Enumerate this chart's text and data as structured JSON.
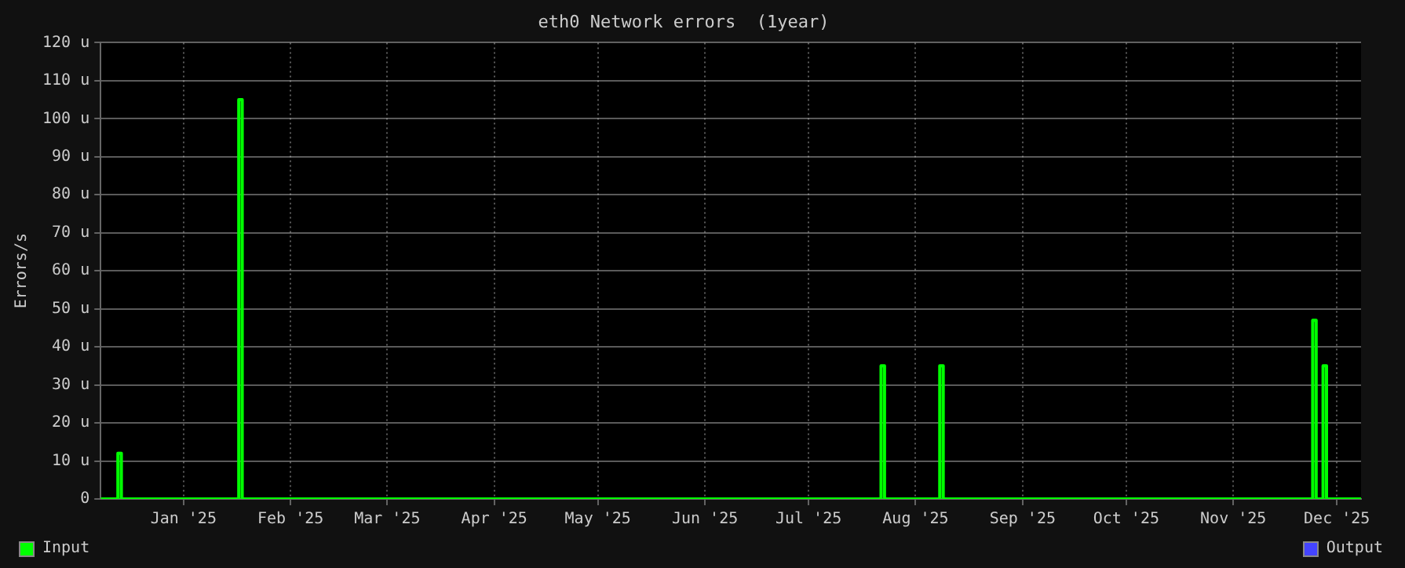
{
  "chart_data": {
    "type": "step",
    "title": "eth0 Network errors  (1year)",
    "ylabel": "Errors/s",
    "xlim": [
      "2024-12-23",
      "2025-12-23"
    ],
    "xticks": [
      {
        "value": "2025-01-16",
        "label": "Jan '25"
      },
      {
        "value": "2025-02-16",
        "label": "Feb '25"
      },
      {
        "value": "2025-03-16",
        "label": "Mar '25"
      },
      {
        "value": "2025-04-16",
        "label": "Apr '25"
      },
      {
        "value": "2025-05-16",
        "label": "May '25"
      },
      {
        "value": "2025-06-16",
        "label": "Jun '25"
      },
      {
        "value": "2025-07-16",
        "label": "Jul '25"
      },
      {
        "value": "2025-08-16",
        "label": "Aug '25"
      },
      {
        "value": "2025-09-16",
        "label": "Sep '25"
      },
      {
        "value": "2025-10-16",
        "label": "Oct '25"
      },
      {
        "value": "2025-11-16",
        "label": "Nov '25"
      },
      {
        "value": "2025-12-16",
        "label": "Dec '25"
      }
    ],
    "ylim": [
      0,
      120
    ],
    "yticks": [
      {
        "value": 0,
        "label": "0"
      },
      {
        "value": 10,
        "label": "10 u"
      },
      {
        "value": 20,
        "label": "20 u"
      },
      {
        "value": 30,
        "label": "30 u"
      },
      {
        "value": 40,
        "label": "40 u"
      },
      {
        "value": 50,
        "label": "50 u"
      },
      {
        "value": 60,
        "label": "60 u"
      },
      {
        "value": 70,
        "label": "70 u"
      },
      {
        "value": 80,
        "label": "80 u"
      },
      {
        "value": 90,
        "label": "90 u"
      },
      {
        "value": 100,
        "label": "100 u"
      },
      {
        "value": 110,
        "label": "110 u"
      },
      {
        "value": 120,
        "label": "120 u"
      }
    ],
    "x": [
      "2024-12-23",
      "2024-12-28",
      "2024-12-29",
      "2025-02-01",
      "2025-02-02",
      "2025-08-06",
      "2025-08-07",
      "2025-08-23",
      "2025-08-24",
      "2025-12-09",
      "2025-12-10",
      "2025-12-12",
      "2025-12-13",
      "2025-12-23"
    ],
    "series": [
      {
        "name": "Input",
        "color": "#00ff00",
        "values": [
          0,
          12,
          0,
          105,
          0,
          35,
          0,
          35,
          0,
          47,
          0,
          35,
          0,
          0
        ]
      },
      {
        "name": "Output",
        "color": "#4444ff",
        "values": [
          null,
          null,
          null,
          null,
          null,
          null,
          null,
          null,
          null,
          null,
          null,
          null,
          null,
          null
        ]
      }
    ],
    "grid": true,
    "legend": "bottom"
  }
}
